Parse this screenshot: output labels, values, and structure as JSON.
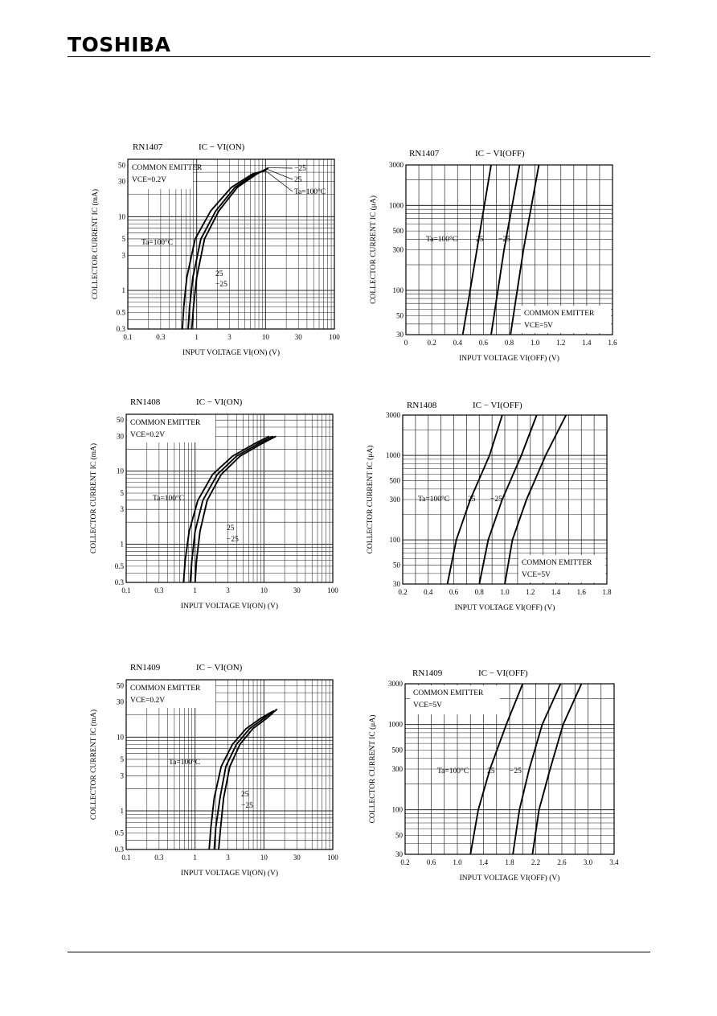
{
  "header": {
    "brand": "TOSHIBA"
  },
  "chart_data": [
    {
      "type": "line",
      "part": "RN1407",
      "title": "IC − VI(ON)",
      "xlabel": "INPUT VOLTAGE   VI(ON)   (V)",
      "ylabel": "COLLECTOR CURRENT   IC   (mA)",
      "xscale": "log",
      "yscale": "log",
      "xlim": [
        0.1,
        100
      ],
      "ylim": [
        0.3,
        60
      ],
      "xticks": [
        0.1,
        0.3,
        1,
        3,
        10,
        30,
        100
      ],
      "xtick_labels": [
        "0.1",
        "0.3",
        "1",
        "3",
        "10",
        "30",
        "100"
      ],
      "yticks": [
        0.3,
        0.5,
        1,
        3,
        5,
        10,
        30,
        50
      ],
      "ytick_labels": [
        "0.3",
        "0.5",
        "1",
        "3",
        "5",
        "10",
        "30",
        "50"
      ],
      "annotations": [
        "COMMON EMITTER",
        "VCE=0.2V"
      ],
      "series": [
        {
          "name": "Ta=100°C",
          "x": [
            0.62,
            0.65,
            0.72,
            0.95,
            1.6,
            3.2,
            6.5,
            10
          ],
          "y": [
            0.3,
            0.6,
            1.5,
            5,
            12,
            25,
            38,
            42
          ]
        },
        {
          "name": "25",
          "x": [
            0.75,
            0.79,
            0.88,
            1.15,
            1.9,
            3.6,
            7,
            10.5
          ],
          "y": [
            0.3,
            0.6,
            1.5,
            5,
            12,
            25,
            38,
            44
          ]
        },
        {
          "name": "−25",
          "x": [
            0.85,
            0.9,
            1.0,
            1.3,
            2.1,
            3.9,
            7.5,
            11
          ],
          "y": [
            0.3,
            0.6,
            1.5,
            5,
            12,
            25,
            38,
            46
          ]
        }
      ]
    },
    {
      "type": "line",
      "part": "RN1407",
      "title": "IC − VI(OFF)",
      "xlabel": "INPUT VOLTAGE   VI(OFF)   (V)",
      "ylabel": "COLLECTOR CURRENT   IC   (μA)",
      "xscale": "linear",
      "yscale": "log",
      "xlim": [
        0,
        1.6
      ],
      "ylim": [
        30,
        3000
      ],
      "xticks": [
        0,
        0.2,
        0.4,
        0.6,
        0.8,
        1.0,
        1.2,
        1.4,
        1.6
      ],
      "xtick_labels": [
        "0",
        "0.2",
        "0.4",
        "0.6",
        "0.8",
        "1.0",
        "1.2",
        "1.4",
        "1.6"
      ],
      "yticks": [
        30,
        50,
        100,
        300,
        500,
        1000,
        3000
      ],
      "ytick_labels": [
        "30",
        "50",
        "100",
        "300",
        "500",
        "1000",
        "3000"
      ],
      "annotations": [
        "COMMON EMITTER",
        "VCE=5V"
      ],
      "series": [
        {
          "name": "Ta=100°C",
          "x": [
            0.44,
            0.55,
            0.66
          ],
          "y": [
            30,
            300,
            3000
          ]
        },
        {
          "name": "25",
          "x": [
            0.66,
            0.76,
            0.88
          ],
          "y": [
            30,
            300,
            3000
          ]
        },
        {
          "name": "−25",
          "x": [
            0.81,
            0.91,
            1.03
          ],
          "y": [
            30,
            300,
            3000
          ]
        }
      ]
    },
    {
      "type": "line",
      "part": "RN1408",
      "title": "IC − VI(ON)",
      "xlabel": "INPUT VOLTAGE   VI(ON)   (V)",
      "ylabel": "COLLECTOR CURRENT   IC   (mA)",
      "xscale": "log",
      "yscale": "log",
      "xlim": [
        0.1,
        100
      ],
      "ylim": [
        0.3,
        60
      ],
      "xticks": [
        0.1,
        0.3,
        1,
        3,
        10,
        30,
        100
      ],
      "xtick_labels": [
        "0.1",
        "0.3",
        "1",
        "3",
        "10",
        "30",
        "100"
      ],
      "yticks": [
        0.3,
        0.5,
        1,
        3,
        5,
        10,
        30,
        50
      ],
      "ytick_labels": [
        "0.3",
        "0.5",
        "1",
        "3",
        "5",
        "10",
        "30",
        "50"
      ],
      "annotations": [
        "COMMON EMITTER",
        "VCE=0.2V"
      ],
      "series": [
        {
          "name": "Ta=100°C",
          "x": [
            0.68,
            0.72,
            0.82,
            1.1,
            1.8,
            3.5,
            7.5,
            12
          ],
          "y": [
            0.3,
            0.6,
            1.5,
            4,
            9,
            16,
            24,
            30
          ]
        },
        {
          "name": "25",
          "x": [
            0.85,
            0.9,
            1.0,
            1.3,
            2.1,
            4.0,
            8.5,
            13.5
          ],
          "y": [
            0.3,
            0.6,
            1.5,
            4,
            9,
            16,
            24,
            30
          ]
        },
        {
          "name": "−25",
          "x": [
            1.0,
            1.05,
            1.18,
            1.5,
            2.4,
            4.5,
            9.5,
            15
          ],
          "y": [
            0.3,
            0.6,
            1.5,
            4,
            9,
            16,
            24,
            30
          ]
        }
      ]
    },
    {
      "type": "line",
      "part": "RN1408",
      "title": "IC − VI(OFF)",
      "xlabel": "INPUT VOLTAGE   VI(OFF)   (V)",
      "ylabel": "COLLECTOR CURRENT   IC   (μA)",
      "xscale": "linear",
      "yscale": "log",
      "xlim": [
        0.2,
        1.8
      ],
      "ylim": [
        30,
        3000
      ],
      "xticks": [
        0.2,
        0.4,
        0.6,
        0.8,
        1.0,
        1.2,
        1.4,
        1.6,
        1.8
      ],
      "xtick_labels": [
        "0.2",
        "0.4",
        "0.6",
        "0.8",
        "1.0",
        "1.2",
        "1.4",
        "1.6",
        "1.8"
      ],
      "yticks": [
        30,
        50,
        100,
        300,
        500,
        1000,
        3000
      ],
      "ytick_labels": [
        "30",
        "50",
        "100",
        "300",
        "500",
        "1000",
        "3000"
      ],
      "annotations": [
        "COMMON EMITTER",
        "VCE=5V"
      ],
      "series": [
        {
          "name": "Ta=100°C",
          "x": [
            0.55,
            0.62,
            0.73,
            0.88,
            0.98
          ],
          "y": [
            30,
            100,
            300,
            1000,
            3000
          ]
        },
        {
          "name": "25",
          "x": [
            0.8,
            0.87,
            0.98,
            1.13,
            1.25
          ],
          "y": [
            30,
            100,
            300,
            1000,
            3000
          ]
        },
        {
          "name": "−25",
          "x": [
            1.0,
            1.06,
            1.17,
            1.32,
            1.48
          ],
          "y": [
            30,
            100,
            300,
            1000,
            3000
          ]
        }
      ]
    },
    {
      "type": "line",
      "part": "RN1409",
      "title": "IC − VI(ON)",
      "xlabel": "INPUT VOLTAGE   VI(ON)   (V)",
      "ylabel": "COLLECTOR CURRENT   IC   (mA)",
      "xscale": "log",
      "yscale": "log",
      "xlim": [
        0.1,
        100
      ],
      "ylim": [
        0.3,
        60
      ],
      "xticks": [
        0.1,
        0.3,
        1,
        3,
        10,
        30,
        100
      ],
      "xtick_labels": [
        "0.1",
        "0.3",
        "1",
        "3",
        "10",
        "30",
        "100"
      ],
      "yticks": [
        0.3,
        0.5,
        1,
        3,
        5,
        10,
        30,
        50
      ],
      "ytick_labels": [
        "0.3",
        "0.5",
        "1",
        "3",
        "5",
        "10",
        "30",
        "50"
      ],
      "annotations": [
        "COMMON EMITTER",
        "VCE=0.2V"
      ],
      "series": [
        {
          "name": "Ta=100°C",
          "x": [
            1.6,
            1.7,
            1.9,
            2.4,
            3.5,
            5.5,
            9,
            13
          ],
          "y": [
            0.3,
            0.6,
            1.5,
            4,
            8,
            13,
            18,
            22
          ]
        },
        {
          "name": "25",
          "x": [
            1.9,
            2.0,
            2.3,
            2.8,
            4.0,
            6.2,
            10,
            14
          ],
          "y": [
            0.3,
            0.6,
            1.5,
            4,
            8,
            13,
            18,
            23
          ]
        },
        {
          "name": "−25",
          "x": [
            2.2,
            2.35,
            2.6,
            3.2,
            4.5,
            6.9,
            11,
            15.5
          ],
          "y": [
            0.3,
            0.6,
            1.5,
            4,
            8,
            13,
            18,
            24
          ]
        }
      ]
    },
    {
      "type": "line",
      "part": "RN1409",
      "title": "IC − VI(OFF)",
      "xlabel": "INPUT VOLTAGE   VI(OFF)   (V)",
      "ylabel": "COLLECTOR CURRENT   IC   (μA)",
      "xscale": "linear",
      "yscale": "log",
      "xlim": [
        0.2,
        3.4
      ],
      "ylim": [
        30,
        3000
      ],
      "xticks": [
        0.2,
        0.6,
        1.0,
        1.4,
        1.8,
        2.2,
        2.6,
        3.0,
        3.4
      ],
      "xtick_labels": [
        "0.2",
        "0.6",
        "1.0",
        "1.4",
        "1.8",
        "2.2",
        "2.6",
        "3.0",
        "3.4"
      ],
      "yticks": [
        30,
        50,
        100,
        300,
        500,
        1000,
        3000
      ],
      "ytick_labels": [
        "30",
        "50",
        "100",
        "300",
        "500",
        "1000",
        "3000"
      ],
      "annotations": [
        "COMMON EMITTER",
        "VCE=5V"
      ],
      "series": [
        {
          "name": "Ta=100°C",
          "x": [
            1.2,
            1.32,
            1.5,
            1.75,
            2.0
          ],
          "y": [
            30,
            100,
            300,
            1000,
            3000
          ]
        },
        {
          "name": "25",
          "x": [
            1.85,
            1.95,
            2.1,
            2.3,
            2.58
          ],
          "y": [
            30,
            100,
            300,
            1000,
            3000
          ]
        },
        {
          "name": "−25",
          "x": [
            2.15,
            2.25,
            2.42,
            2.62,
            2.9
          ],
          "y": [
            30,
            100,
            300,
            1000,
            3000
          ]
        }
      ]
    }
  ]
}
